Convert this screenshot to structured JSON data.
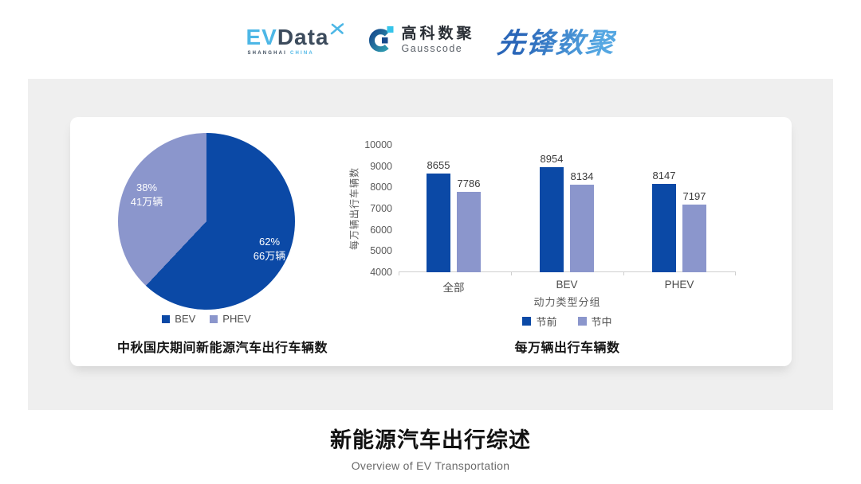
{
  "header": {
    "evdata": {
      "part1": "EV",
      "part2": "Data",
      "sub1": "SHANGHAI",
      "sub2": "CHINA"
    },
    "gausscode": {
      "name_cn": "高科数聚",
      "name_en": "Gausscode"
    },
    "pioneer": {
      "name": "先锋数聚"
    }
  },
  "colors": {
    "primary_dark": "#0b49a6",
    "primary_light": "#8b96cc",
    "panel_bg": "#efefef"
  },
  "chart_data": [
    {
      "type": "pie",
      "title": "中秋国庆期间新能源汽车出行车辆数",
      "labels": [
        "BEV",
        "PHEV"
      ],
      "values_percent": [
        62,
        38
      ],
      "values_amount": [
        "66万辆",
        "41万辆"
      ],
      "slice_labels": [
        {
          "percent": "62%",
          "amount": "66万辆"
        },
        {
          "percent": "38%",
          "amount": "41万辆"
        }
      ],
      "colors": [
        "#0b49a6",
        "#8b96cc"
      ],
      "start_angle_deg": 0,
      "legend_position": "bottom"
    },
    {
      "type": "bar",
      "title": "每万辆出行车辆数",
      "xlabel": "动力类型分组",
      "ylabel": "每万辆出行车辆数",
      "categories": [
        "全部",
        "BEV",
        "PHEV"
      ],
      "series": [
        {
          "name": "节前",
          "color": "#0b49a6",
          "values": [
            8655,
            8954,
            8147
          ]
        },
        {
          "name": "节中",
          "color": "#8b96cc",
          "values": [
            7786,
            8134,
            7197
          ]
        }
      ],
      "ylim": [
        4000,
        10000
      ],
      "ytick_step": 1000,
      "grid": false,
      "legend_position": "bottom"
    }
  ],
  "footer": {
    "title": "新能源汽车出行综述",
    "subtitle": "Overview of EV Transportation"
  }
}
